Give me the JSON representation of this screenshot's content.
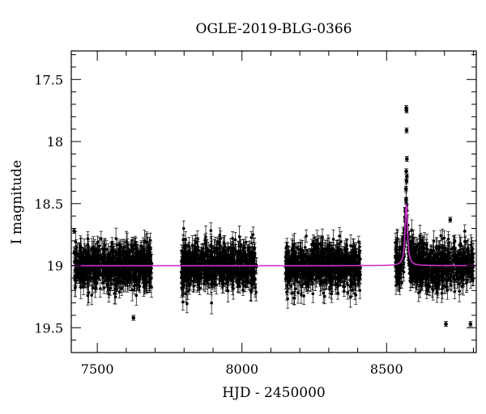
{
  "chart_data": {
    "type": "scatter",
    "title": "OGLE-2019-BLG-0366",
    "xlabel": "HJD - 2450000",
    "ylabel": "I magnitude",
    "xlim": [
      7410,
      8810
    ],
    "ylim": [
      19.7,
      17.27
    ],
    "y_inverted": true,
    "x_ticks": [
      7500,
      8000,
      8500
    ],
    "y_ticks": [
      17.5,
      18,
      18.5,
      19,
      19.5
    ],
    "grid": false,
    "legend": "none",
    "colors": {
      "points": "#000000",
      "model": "#cc33cc",
      "frame": "#000000"
    },
    "model": {
      "name": "",
      "baseline_mag": 19.0,
      "peak_time": 8568,
      "peak_mag": 18.5,
      "timescale_days": 5
    },
    "seasons": [
      {
        "start": 7420,
        "end": 7690
      },
      {
        "start": 7790,
        "end": 8050
      },
      {
        "start": 8150,
        "end": 8410
      },
      {
        "start": 8530,
        "end": 8800
      }
    ],
    "points_approx_per_season": 700,
    "highlight_points": [
      {
        "x": 8568,
        "y": 17.73
      },
      {
        "x": 8569,
        "y": 17.75
      },
      {
        "x": 8569,
        "y": 17.91
      },
      {
        "x": 8570,
        "y": 18.14
      },
      {
        "x": 8568,
        "y": 18.24
      },
      {
        "x": 8570,
        "y": 18.28
      },
      {
        "x": 8569,
        "y": 18.32
      },
      {
        "x": 8567,
        "y": 18.38
      },
      {
        "x": 8567,
        "y": 18.47
      },
      {
        "x": 8566,
        "y": 18.55
      },
      {
        "x": 8565,
        "y": 18.72
      },
      {
        "x": 8571,
        "y": 18.78
      },
      {
        "x": 7420,
        "y": 18.72
      },
      {
        "x": 8720,
        "y": 18.63
      },
      {
        "x": 8705,
        "y": 19.47
      },
      {
        "x": 8790,
        "y": 19.47
      },
      {
        "x": 7625,
        "y": 19.42
      }
    ]
  }
}
